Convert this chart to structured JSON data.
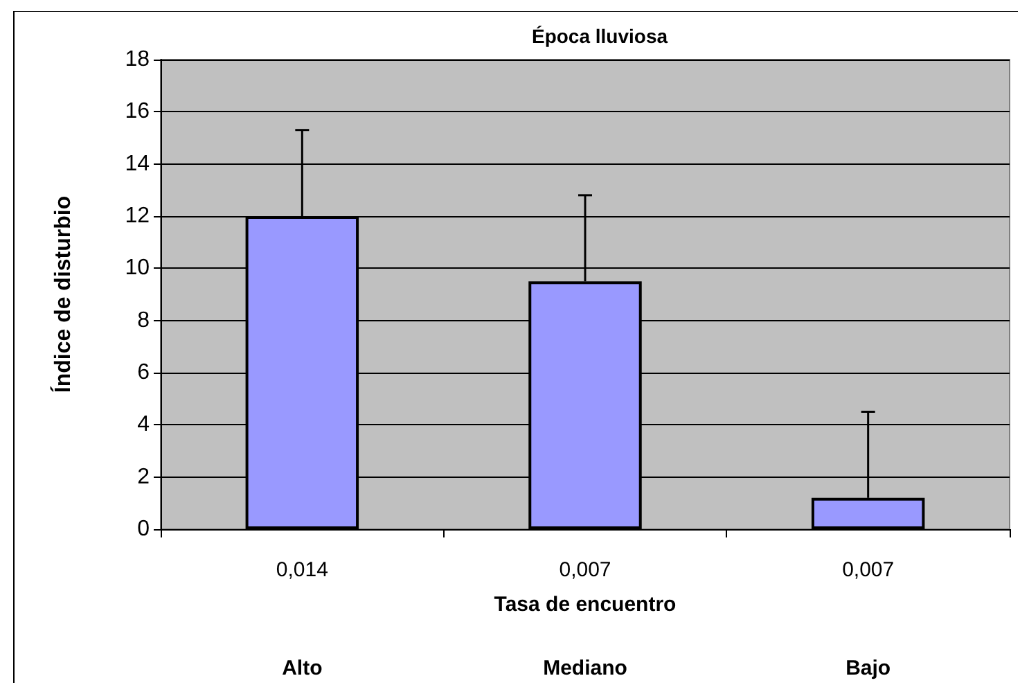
{
  "chart_data": {
    "type": "bar",
    "title": "Época lluviosa",
    "xlabel": "Tasa de encuentro",
    "ylabel": "Índice de disturbio",
    "categories": [
      "0,014",
      "0,007",
      "0,007"
    ],
    "values": [
      12,
      9.5,
      1.2
    ],
    "color": "#9999ff",
    "errors": [
      [
        12,
        15.3
      ],
      [
        9.5,
        12.8
      ],
      [
        1.2,
        4.5
      ]
    ],
    "ylim": [
      0,
      18
    ],
    "yticks": [
      0,
      2,
      4,
      6,
      8,
      10,
      12,
      14,
      16,
      18
    ],
    "grid": "y",
    "annotations": [
      "Alto",
      "Mediano",
      "Bajo"
    ]
  }
}
